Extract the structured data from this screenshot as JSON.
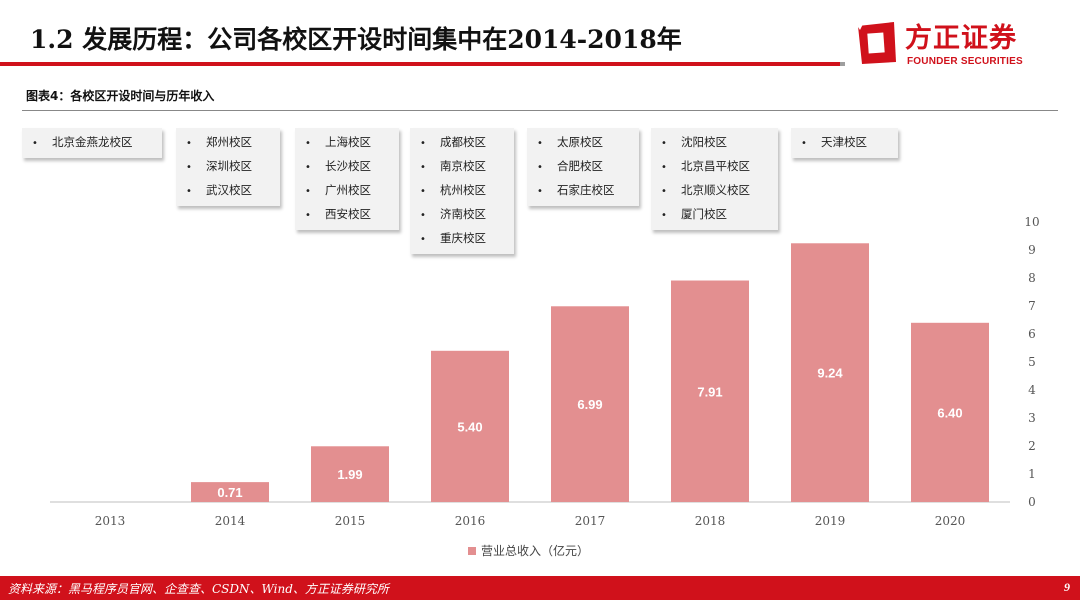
{
  "header": {
    "title": "1.2 发展历程：公司各校区开设时间集中在2014-2018年",
    "brand_name": "方正证券",
    "brand_name_en": "FOUNDER SECURITIES"
  },
  "figure": {
    "caption": "图表4：各校区开设时间与历年收入"
  },
  "campus_groups": [
    [
      "北京金燕龙校区"
    ],
    [
      "郑州校区",
      "深圳校区",
      "武汉校区"
    ],
    [
      "上海校区",
      "长沙校区",
      "广州校区",
      "西安校区"
    ],
    [
      "成都校区",
      "南京校区",
      "杭州校区",
      "济南校区",
      "重庆校区"
    ],
    [
      "太原校区",
      "合肥校区",
      "石家庄校区"
    ],
    [
      "沈阳校区",
      "北京昌平校区",
      "北京顺义校区",
      "厦门校区"
    ],
    [
      "天津校区"
    ]
  ],
  "chart_data": {
    "type": "bar",
    "categories": [
      "2013",
      "2014",
      "2015",
      "2016",
      "2017",
      "2018",
      "2019",
      "2020"
    ],
    "series": [
      {
        "name": "营业总收入（亿元）",
        "values": [
          null,
          0.71,
          1.99,
          5.4,
          6.99,
          7.91,
          9.24,
          6.4
        ],
        "labels": [
          "",
          "0.71",
          "1.99",
          "5.40",
          "6.99",
          "7.91",
          "9.24",
          "6.40"
        ],
        "color": "#e38f90"
      }
    ],
    "ylim": [
      0,
      10
    ],
    "yticks": [
      "0",
      "1",
      "2",
      "3",
      "4",
      "5",
      "6",
      "7",
      "8",
      "9",
      "10"
    ],
    "y_axis_side": "right",
    "grid": false,
    "legend_position": "bottom-center",
    "title": "",
    "xlabel": "",
    "ylabel": ""
  },
  "footer": {
    "source": "资料来源：黑马程序员官网、企查查、CSDN、Wind、方正证券研究所",
    "page_number": "9",
    "color": "#d0111b"
  }
}
